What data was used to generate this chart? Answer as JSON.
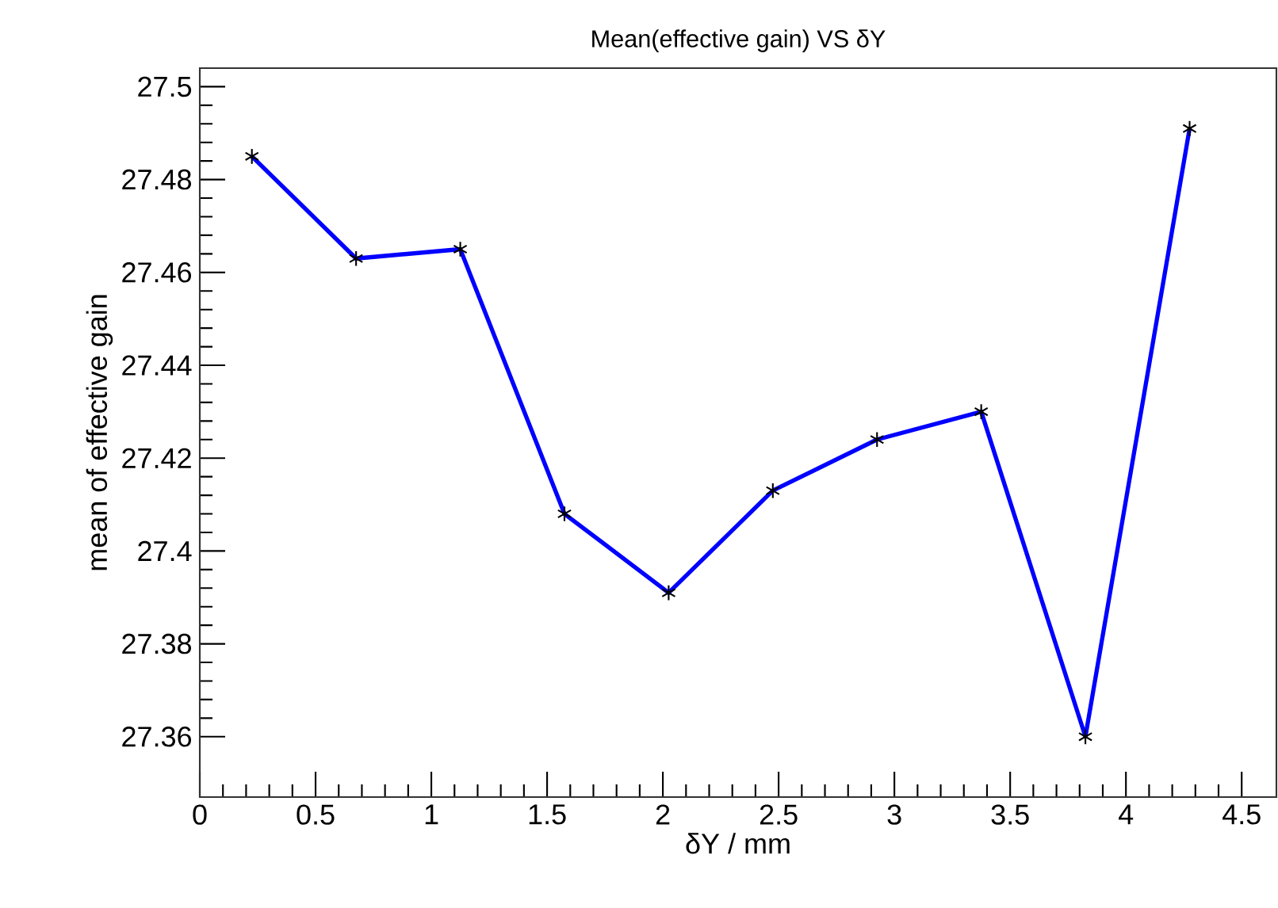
{
  "chart_data": {
    "type": "line",
    "title": "Mean(effective gain) VS δY",
    "xlabel": "δY / mm",
    "ylabel": "mean of effective gain",
    "x": [
      0.225,
      0.675,
      1.125,
      1.575,
      2.025,
      2.475,
      2.925,
      3.375,
      3.825,
      4.275
    ],
    "series": [
      {
        "color": "#0000ff",
        "values": [
          27.485,
          27.463,
          27.465,
          27.408,
          27.391,
          27.413,
          27.424,
          27.43,
          27.36,
          27.491
        ]
      }
    ],
    "xlim": [
      0,
      4.65
    ],
    "ylim": [
      27.347,
      27.504
    ],
    "xticks": [
      0,
      0.5,
      1,
      1.5,
      2,
      2.5,
      3,
      3.5,
      4,
      4.5
    ],
    "yticks": [
      27.36,
      27.38,
      27.4,
      27.42,
      27.44,
      27.46,
      27.48,
      27.5
    ],
    "marker": "cross",
    "line_style": "solid",
    "grid": false
  }
}
